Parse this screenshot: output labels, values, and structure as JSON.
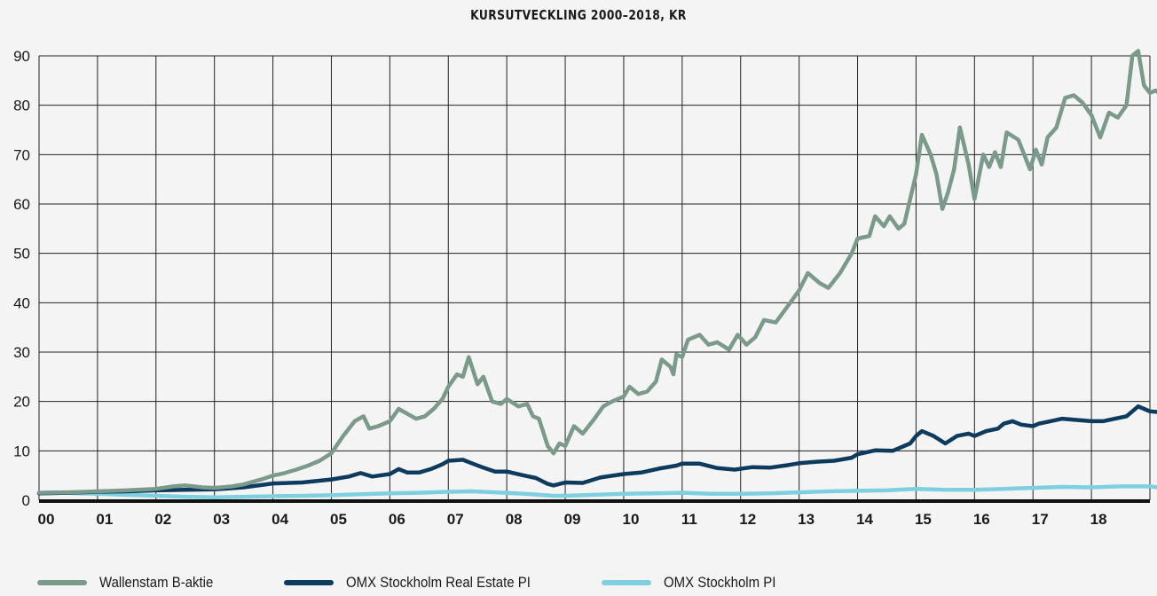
{
  "chart_data": {
    "type": "line",
    "title": "KURSUTVECKLING 2000–2018, KR",
    "xlabel": "",
    "ylabel": "",
    "ylim": [
      0,
      90
    ],
    "xlim": [
      2000,
      2019
    ],
    "x_tick_labels": [
      "00",
      "01",
      "02",
      "03",
      "04",
      "05",
      "06",
      "07",
      "08",
      "09",
      "10",
      "11",
      "12",
      "13",
      "14",
      "15",
      "16",
      "17",
      "18"
    ],
    "y_ticks": [
      0,
      10,
      20,
      30,
      40,
      50,
      60,
      70,
      80,
      90
    ],
    "grid": true,
    "legend_position": "bottom",
    "series": [
      {
        "name": "Wallenstam B-aktie",
        "color": "#7a9a8b",
        "points": [
          [
            2000.0,
            1.5
          ],
          [
            2000.5,
            1.6
          ],
          [
            2001.0,
            1.8
          ],
          [
            2001.5,
            2.0
          ],
          [
            2002.0,
            2.3
          ],
          [
            2002.3,
            2.8
          ],
          [
            2002.5,
            3.0
          ],
          [
            2002.8,
            2.6
          ],
          [
            2003.0,
            2.5
          ],
          [
            2003.3,
            2.8
          ],
          [
            2003.5,
            3.2
          ],
          [
            2003.8,
            4.2
          ],
          [
            2004.0,
            5.0
          ],
          [
            2004.2,
            5.5
          ],
          [
            2004.4,
            6.2
          ],
          [
            2004.6,
            7.0
          ],
          [
            2004.8,
            8.0
          ],
          [
            2005.0,
            9.5
          ],
          [
            2005.2,
            13.0
          ],
          [
            2005.4,
            16.0
          ],
          [
            2005.55,
            17.0
          ],
          [
            2005.65,
            14.5
          ],
          [
            2005.8,
            15.0
          ],
          [
            2006.0,
            16.0
          ],
          [
            2006.15,
            18.5
          ],
          [
            2006.3,
            17.5
          ],
          [
            2006.45,
            16.5
          ],
          [
            2006.6,
            17.0
          ],
          [
            2006.75,
            18.5
          ],
          [
            2006.9,
            20.5
          ],
          [
            2007.0,
            23.0
          ],
          [
            2007.15,
            25.5
          ],
          [
            2007.25,
            25.0
          ],
          [
            2007.35,
            29.0
          ],
          [
            2007.5,
            23.5
          ],
          [
            2007.6,
            25.0
          ],
          [
            2007.75,
            20.0
          ],
          [
            2007.9,
            19.5
          ],
          [
            2008.0,
            20.5
          ],
          [
            2008.2,
            19.0
          ],
          [
            2008.35,
            19.5
          ],
          [
            2008.45,
            17.0
          ],
          [
            2008.55,
            16.5
          ],
          [
            2008.7,
            11.0
          ],
          [
            2008.8,
            9.5
          ],
          [
            2008.9,
            11.5
          ],
          [
            2009.0,
            11.0
          ],
          [
            2009.15,
            15.0
          ],
          [
            2009.3,
            13.5
          ],
          [
            2009.5,
            16.5
          ],
          [
            2009.65,
            19.0
          ],
          [
            2009.8,
            20.0
          ],
          [
            2010.0,
            21.0
          ],
          [
            2010.1,
            23.0
          ],
          [
            2010.25,
            21.5
          ],
          [
            2010.4,
            22.0
          ],
          [
            2010.55,
            24.0
          ],
          [
            2010.65,
            28.5
          ],
          [
            2010.8,
            27.0
          ],
          [
            2010.85,
            25.5
          ],
          [
            2010.9,
            29.5
          ],
          [
            2011.0,
            29.0
          ],
          [
            2011.1,
            32.5
          ],
          [
            2011.3,
            33.5
          ],
          [
            2011.45,
            31.5
          ],
          [
            2011.6,
            32.0
          ],
          [
            2011.8,
            30.5
          ],
          [
            2011.95,
            33.5
          ],
          [
            2012.1,
            31.5
          ],
          [
            2012.25,
            33.0
          ],
          [
            2012.4,
            36.5
          ],
          [
            2012.6,
            36.0
          ],
          [
            2012.85,
            40.0
          ],
          [
            2013.0,
            42.5
          ],
          [
            2013.15,
            46.0
          ],
          [
            2013.35,
            44.0
          ],
          [
            2013.5,
            43.0
          ],
          [
            2013.7,
            46.0
          ],
          [
            2013.9,
            50.0
          ],
          [
            2014.0,
            53.0
          ],
          [
            2014.2,
            53.5
          ],
          [
            2014.3,
            57.5
          ],
          [
            2014.45,
            55.5
          ],
          [
            2014.55,
            57.5
          ],
          [
            2014.7,
            55.0
          ],
          [
            2014.8,
            56.0
          ],
          [
            2015.0,
            66.0
          ],
          [
            2015.1,
            74.0
          ],
          [
            2015.25,
            70.0
          ],
          [
            2015.35,
            66.0
          ],
          [
            2015.45,
            59.0
          ],
          [
            2015.55,
            62.5
          ],
          [
            2015.65,
            67.0
          ],
          [
            2015.75,
            75.5
          ],
          [
            2015.9,
            68.0
          ],
          [
            2016.0,
            61.0
          ],
          [
            2016.15,
            70.0
          ],
          [
            2016.25,
            67.5
          ],
          [
            2016.35,
            70.5
          ],
          [
            2016.45,
            67.5
          ],
          [
            2016.55,
            74.5
          ],
          [
            2016.75,
            73.0
          ],
          [
            2016.95,
            67.0
          ],
          [
            2017.05,
            71.0
          ],
          [
            2017.15,
            68.0
          ],
          [
            2017.25,
            73.5
          ],
          [
            2017.4,
            75.5
          ],
          [
            2017.55,
            81.5
          ],
          [
            2017.7,
            82.0
          ],
          [
            2017.85,
            80.5
          ],
          [
            2018.0,
            78.0
          ],
          [
            2018.15,
            73.5
          ],
          [
            2018.3,
            78.5
          ],
          [
            2018.45,
            77.5
          ],
          [
            2018.6,
            80.0
          ],
          [
            2018.7,
            90.0
          ],
          [
            2018.8,
            91.0
          ],
          [
            2018.9,
            84.0
          ],
          [
            2019.0,
            82.5
          ],
          [
            2019.1,
            83.0
          ],
          [
            2019.2,
            82.0
          ]
        ]
      },
      {
        "name": "OMX Stockholm Real Estate PI",
        "color": "#0d3b5e",
        "points": [
          [
            2000.0,
            1.4
          ],
          [
            2000.5,
            1.5
          ],
          [
            2001.0,
            1.7
          ],
          [
            2001.5,
            1.8
          ],
          [
            2002.0,
            2.0
          ],
          [
            2002.5,
            2.1
          ],
          [
            2003.0,
            2.2
          ],
          [
            2003.5,
            2.6
          ],
          [
            2004.0,
            3.4
          ],
          [
            2004.5,
            3.6
          ],
          [
            2005.0,
            4.2
          ],
          [
            2005.3,
            4.8
          ],
          [
            2005.5,
            5.5
          ],
          [
            2005.7,
            4.8
          ],
          [
            2006.0,
            5.3
          ],
          [
            2006.15,
            6.3
          ],
          [
            2006.3,
            5.6
          ],
          [
            2006.5,
            5.6
          ],
          [
            2006.7,
            6.3
          ],
          [
            2006.9,
            7.3
          ],
          [
            2007.0,
            8.0
          ],
          [
            2007.25,
            8.2
          ],
          [
            2007.4,
            7.5
          ],
          [
            2007.6,
            6.6
          ],
          [
            2007.8,
            5.8
          ],
          [
            2008.0,
            5.8
          ],
          [
            2008.3,
            5.0
          ],
          [
            2008.5,
            4.5
          ],
          [
            2008.7,
            3.3
          ],
          [
            2008.8,
            3.0
          ],
          [
            2009.0,
            3.6
          ],
          [
            2009.3,
            3.5
          ],
          [
            2009.6,
            4.6
          ],
          [
            2010.0,
            5.3
          ],
          [
            2010.3,
            5.6
          ],
          [
            2010.6,
            6.4
          ],
          [
            2010.9,
            7.0
          ],
          [
            2011.0,
            7.4
          ],
          [
            2011.3,
            7.4
          ],
          [
            2011.6,
            6.5
          ],
          [
            2011.9,
            6.2
          ],
          [
            2012.2,
            6.7
          ],
          [
            2012.5,
            6.6
          ],
          [
            2012.8,
            7.1
          ],
          [
            2013.0,
            7.5
          ],
          [
            2013.3,
            7.8
          ],
          [
            2013.6,
            8.0
          ],
          [
            2013.9,
            8.6
          ],
          [
            2014.0,
            9.3
          ],
          [
            2014.3,
            10.1
          ],
          [
            2014.6,
            10.0
          ],
          [
            2014.9,
            11.5
          ],
          [
            2015.0,
            13.0
          ],
          [
            2015.1,
            14.0
          ],
          [
            2015.3,
            13.0
          ],
          [
            2015.5,
            11.5
          ],
          [
            2015.7,
            13.0
          ],
          [
            2015.9,
            13.5
          ],
          [
            2016.0,
            13.0
          ],
          [
            2016.2,
            14.0
          ],
          [
            2016.4,
            14.5
          ],
          [
            2016.5,
            15.5
          ],
          [
            2016.65,
            16.0
          ],
          [
            2016.8,
            15.3
          ],
          [
            2017.0,
            15.0
          ],
          [
            2017.1,
            15.5
          ],
          [
            2017.3,
            16.0
          ],
          [
            2017.5,
            16.5
          ],
          [
            2017.7,
            16.3
          ],
          [
            2018.0,
            16.0
          ],
          [
            2018.2,
            16.0
          ],
          [
            2018.4,
            16.5
          ],
          [
            2018.6,
            17.0
          ],
          [
            2018.7,
            18.0
          ],
          [
            2018.8,
            19.0
          ],
          [
            2018.9,
            18.5
          ],
          [
            2019.0,
            18.0
          ],
          [
            2019.2,
            17.8
          ]
        ]
      },
      {
        "name": "OMX Stockholm PI",
        "color": "#7ecfe0",
        "points": [
          [
            2000.0,
            1.5
          ],
          [
            2000.3,
            1.6
          ],
          [
            2000.7,
            1.4
          ],
          [
            2001.0,
            1.3
          ],
          [
            2001.5,
            1.1
          ],
          [
            2002.0,
            0.9
          ],
          [
            2002.5,
            0.7
          ],
          [
            2003.0,
            0.6
          ],
          [
            2003.5,
            0.7
          ],
          [
            2004.0,
            0.8
          ],
          [
            2004.5,
            0.9
          ],
          [
            2005.0,
            1.0
          ],
          [
            2005.5,
            1.2
          ],
          [
            2006.0,
            1.4
          ],
          [
            2006.5,
            1.5
          ],
          [
            2007.0,
            1.7
          ],
          [
            2007.4,
            1.8
          ],
          [
            2007.8,
            1.6
          ],
          [
            2008.3,
            1.3
          ],
          [
            2008.8,
            0.9
          ],
          [
            2009.0,
            0.9
          ],
          [
            2009.5,
            1.1
          ],
          [
            2010.0,
            1.3
          ],
          [
            2010.5,
            1.4
          ],
          [
            2011.0,
            1.5
          ],
          [
            2011.5,
            1.3
          ],
          [
            2012.0,
            1.3
          ],
          [
            2012.5,
            1.4
          ],
          [
            2013.0,
            1.6
          ],
          [
            2013.5,
            1.8
          ],
          [
            2014.0,
            1.9
          ],
          [
            2014.5,
            2.0
          ],
          [
            2015.0,
            2.3
          ],
          [
            2015.5,
            2.1
          ],
          [
            2016.0,
            2.1
          ],
          [
            2016.5,
            2.3
          ],
          [
            2017.0,
            2.5
          ],
          [
            2017.5,
            2.7
          ],
          [
            2018.0,
            2.6
          ],
          [
            2018.5,
            2.8
          ],
          [
            2019.0,
            2.8
          ],
          [
            2019.2,
            2.5
          ]
        ]
      }
    ]
  }
}
